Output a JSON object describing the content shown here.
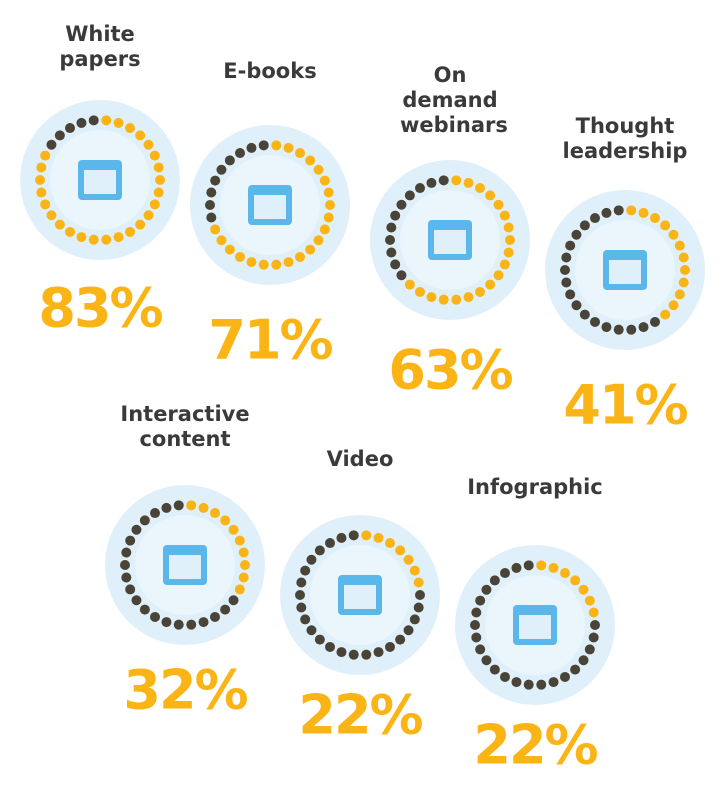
{
  "chart_data": {
    "type": "dot-ring",
    "categories": [
      "White papers",
      "E-books",
      "On demand webinars",
      "Thought leadership",
      "Interactive content",
      "Video",
      "Infographic"
    ],
    "values": [
      83,
      71,
      63,
      41,
      32,
      22,
      22
    ],
    "value_labels": [
      "83%",
      "71%",
      "63%",
      "41%",
      "32%",
      "22%",
      "22%"
    ],
    "color": "#fbb415",
    "rest_color": "#4a4438"
  }
}
